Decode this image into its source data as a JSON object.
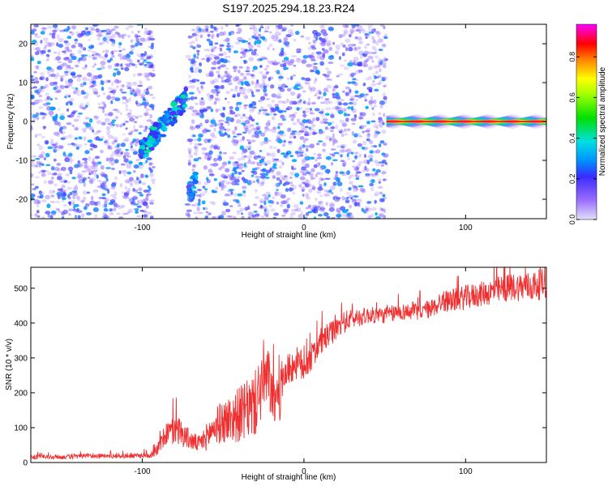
{
  "title": "S197.2025.294.18.23.R24",
  "colors": {
    "snr_line": "#f03030",
    "frame": "#000000"
  },
  "chart_data": [
    {
      "type": "heatmap",
      "xlabel": "Height of straight line (km)",
      "ylabel": "Frequency (Hz)",
      "xlim": [
        -169,
        150
      ],
      "ylim": [
        -25,
        25
      ],
      "x_ticks": [
        -100,
        0,
        100
      ],
      "y_ticks": [
        -20,
        -10,
        0,
        10,
        20
      ],
      "grid": false,
      "colorbar": {
        "label": "Normalized spectral amplitude",
        "ticks": [
          "0.0",
          "0.2",
          "0.4",
          "0.6",
          "0.8"
        ],
        "range": [
          0,
          0.96
        ]
      },
      "features": [
        {
          "kind": "noise",
          "x_range": [
            -169,
            -93
          ],
          "amplitude": 0.15
        },
        {
          "kind": "blob",
          "x_range": [
            -101,
            -73
          ],
          "y_range": [
            -8,
            6
          ],
          "amplitude": 0.45
        },
        {
          "kind": "blob",
          "x": -69,
          "y": -17,
          "amplitude": 0.4
        },
        {
          "kind": "noise",
          "x_range": [
            -72,
            51
          ],
          "amplitude": 0.15
        },
        {
          "kind": "band",
          "x_range": [
            51,
            150
          ],
          "y": 0,
          "amplitude": 0.95
        }
      ]
    },
    {
      "type": "line",
      "xlabel": "Height of straight line (km)",
      "ylabel": "SNR (10 * v/v)",
      "xlim": [
        -169,
        150
      ],
      "ylim": [
        0,
        560
      ],
      "x_ticks": [
        -100,
        0,
        100
      ],
      "y_ticks": [
        0,
        100,
        200,
        300,
        400,
        500
      ],
      "grid": false,
      "series": [
        {
          "x": [
            -169,
            -150,
            -130,
            -110,
            -95,
            -90,
            -85,
            -78,
            -70,
            -65,
            -60,
            -55,
            -50,
            -45,
            -40,
            -35,
            -30,
            -25,
            -22,
            -20,
            -18,
            -15,
            -12,
            -10,
            -5,
            0,
            5,
            10,
            15,
            20,
            25,
            30,
            40,
            50,
            60,
            70,
            80,
            85,
            90,
            100,
            110,
            120,
            130,
            140,
            150
          ],
          "values": [
            15,
            15,
            18,
            18,
            20,
            40,
            80,
            90,
            60,
            50,
            70,
            100,
            110,
            120,
            130,
            140,
            160,
            230,
            220,
            200,
            150,
            180,
            250,
            260,
            280,
            270,
            300,
            340,
            360,
            380,
            400,
            410,
            420,
            420,
            430,
            430,
            440,
            460,
            460,
            470,
            480,
            490,
            500,
            500,
            510
          ],
          "spread": [
            8,
            8,
            8,
            8,
            10,
            25,
            45,
            55,
            35,
            30,
            50,
            65,
            80,
            90,
            100,
            110,
            120,
            140,
            130,
            90,
            80,
            90,
            60,
            60,
            60,
            60,
            50,
            50,
            45,
            40,
            40,
            35,
            30,
            30,
            30,
            30,
            35,
            40,
            40,
            45,
            45,
            50,
            50,
            55,
            55
          ]
        }
      ]
    }
  ]
}
